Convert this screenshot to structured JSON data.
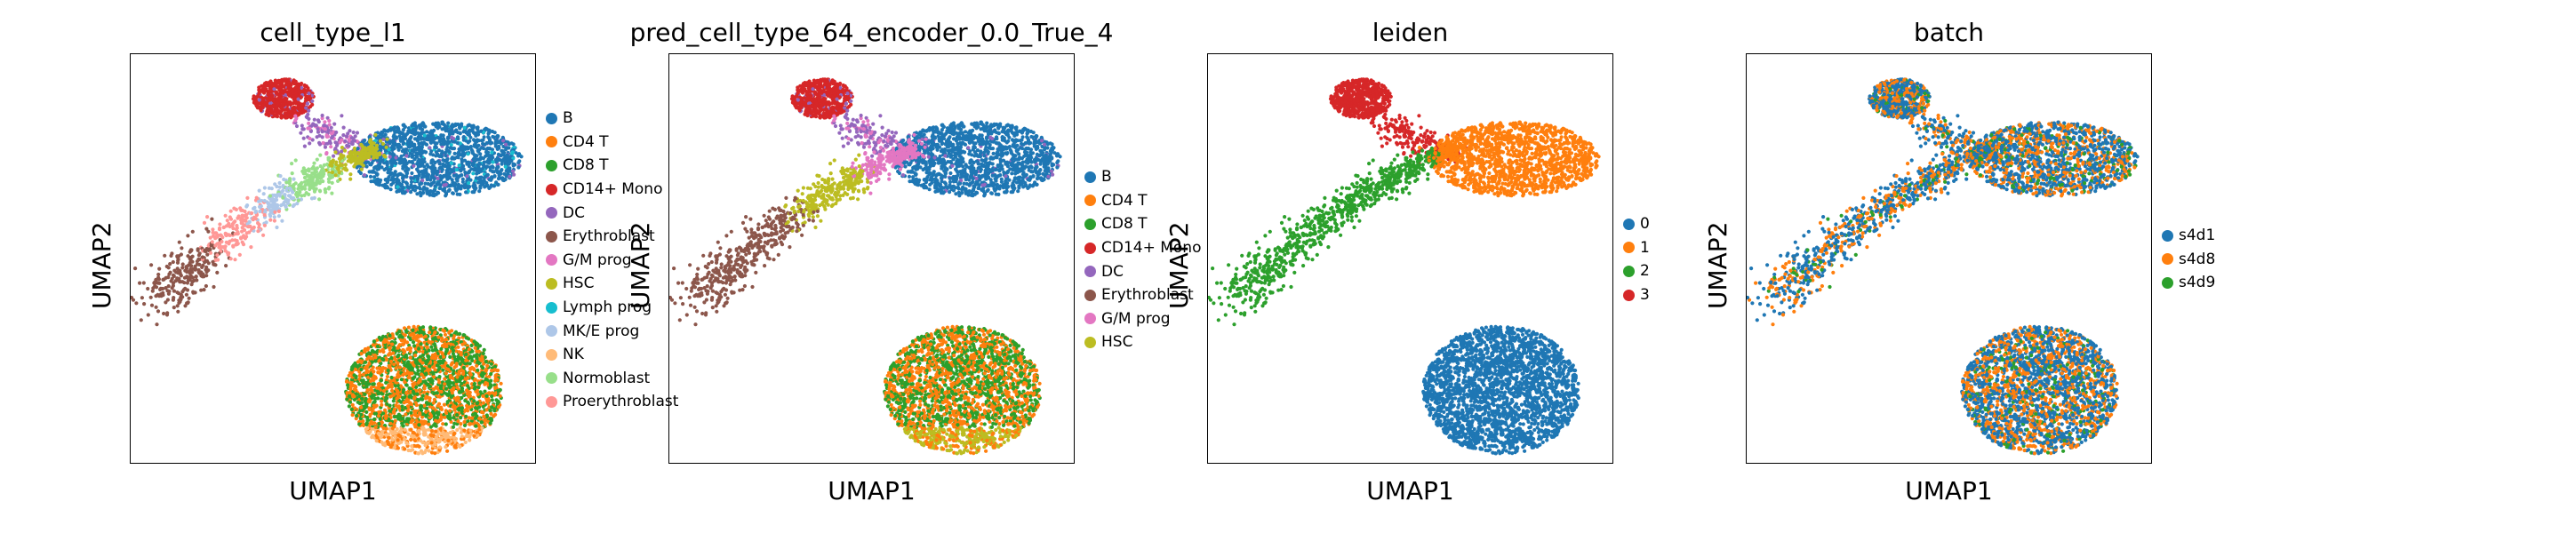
{
  "chart_data": [
    {
      "type": "scatter",
      "title": "cell_type_l1",
      "xlabel": "UMAP1",
      "ylabel": "UMAP2",
      "legend_position": "right",
      "categories": [
        "B",
        "CD4 T",
        "CD8 T",
        "CD14+ Mono",
        "DC",
        "Erythroblast",
        "G/M prog",
        "HSC",
        "Lymph prog",
        "MK/E prog",
        "NK",
        "Normoblast",
        "Proerythroblast"
      ],
      "colors": [
        "#1f77b4",
        "#ff7f0e",
        "#2ca02c",
        "#d62728",
        "#9467bd",
        "#8c564b",
        "#e377c2",
        "#bcbd22",
        "#17becf",
        "#aec7e8",
        "#ffbb78",
        "#98df8a",
        "#ff9896"
      ]
    },
    {
      "type": "scatter",
      "title": "pred_cell_type_64_encoder_0.0_True_4",
      "xlabel": "UMAP1",
      "ylabel": "UMAP2",
      "legend_position": "right",
      "categories": [
        "B",
        "CD4 T",
        "CD8 T",
        "CD14+ Mono",
        "DC",
        "Erythroblast",
        "G/M prog",
        "HSC"
      ],
      "colors": [
        "#1f77b4",
        "#ff7f0e",
        "#2ca02c",
        "#d62728",
        "#9467bd",
        "#8c564b",
        "#e377c2",
        "#bcbd22"
      ]
    },
    {
      "type": "scatter",
      "title": "leiden",
      "xlabel": "UMAP1",
      "ylabel": "UMAP2",
      "legend_position": "right",
      "categories": [
        "0",
        "1",
        "2",
        "3"
      ],
      "colors": [
        "#1f77b4",
        "#ff7f0e",
        "#2ca02c",
        "#d62728"
      ]
    },
    {
      "type": "scatter",
      "title": "batch",
      "xlabel": "UMAP1",
      "ylabel": "UMAP2",
      "legend_position": "right",
      "categories": [
        "s4d1",
        "s4d8",
        "s4d9"
      ],
      "colors": [
        "#1f77b4",
        "#ff7f0e",
        "#2ca02c"
      ]
    }
  ]
}
